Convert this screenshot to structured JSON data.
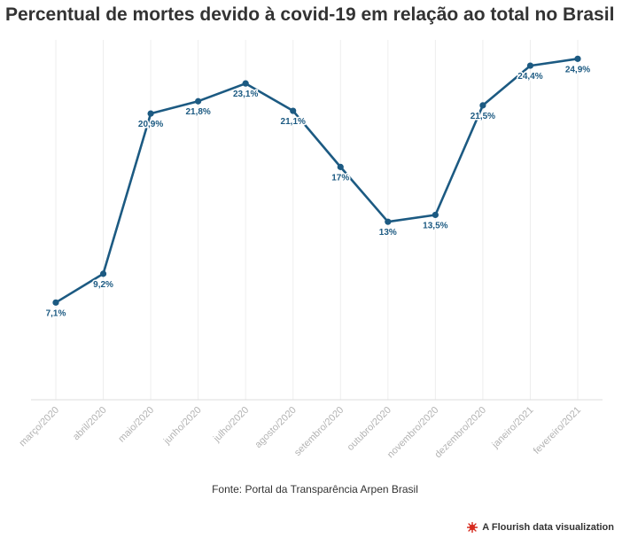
{
  "title": "Percentual de mortes devido à covid-19 em relação ao total no Brasil",
  "source": "Fonte: Portal da Transparência Arpen Brasil",
  "credit": "A Flourish data visualization",
  "colors": {
    "line": "#1c5a82",
    "grid": "#eeeeee",
    "axis": "#dddddd",
    "tick_text": "#b3b3b3",
    "title": "#333333",
    "credit_icon": "#d62b1f"
  },
  "chart_data": {
    "type": "line",
    "title": "Percentual de mortes devido à covid-19 em relação ao total no Brasil",
    "categories": [
      "março/2020",
      "abril/2020",
      "maio/2020",
      "junho/2020",
      "julho/2020",
      "agosto/2020",
      "setembro/2020",
      "outubro/2020",
      "novembro/2020",
      "dezembro/2020",
      "janeiro/2021",
      "fevereiro/2021"
    ],
    "series": [
      {
        "values": [
          7.1,
          9.2,
          20.9,
          21.8,
          23.1,
          21.1,
          17,
          13,
          13.5,
          21.5,
          24.4,
          24.9
        ]
      }
    ],
    "data_labels": [
      "7,1%",
      "9,2%",
      "20,9%",
      "21,8%",
      "23,1%",
      "21,1%",
      "17%",
      "13%",
      "13,5%",
      "21,5%",
      "24,4%",
      "24,9%"
    ],
    "xlabel": "",
    "ylabel": "",
    "ylim": [
      0,
      25
    ],
    "y_axis_visible": false,
    "grid": "vertical",
    "tick_label_rotation": "-45deg"
  }
}
